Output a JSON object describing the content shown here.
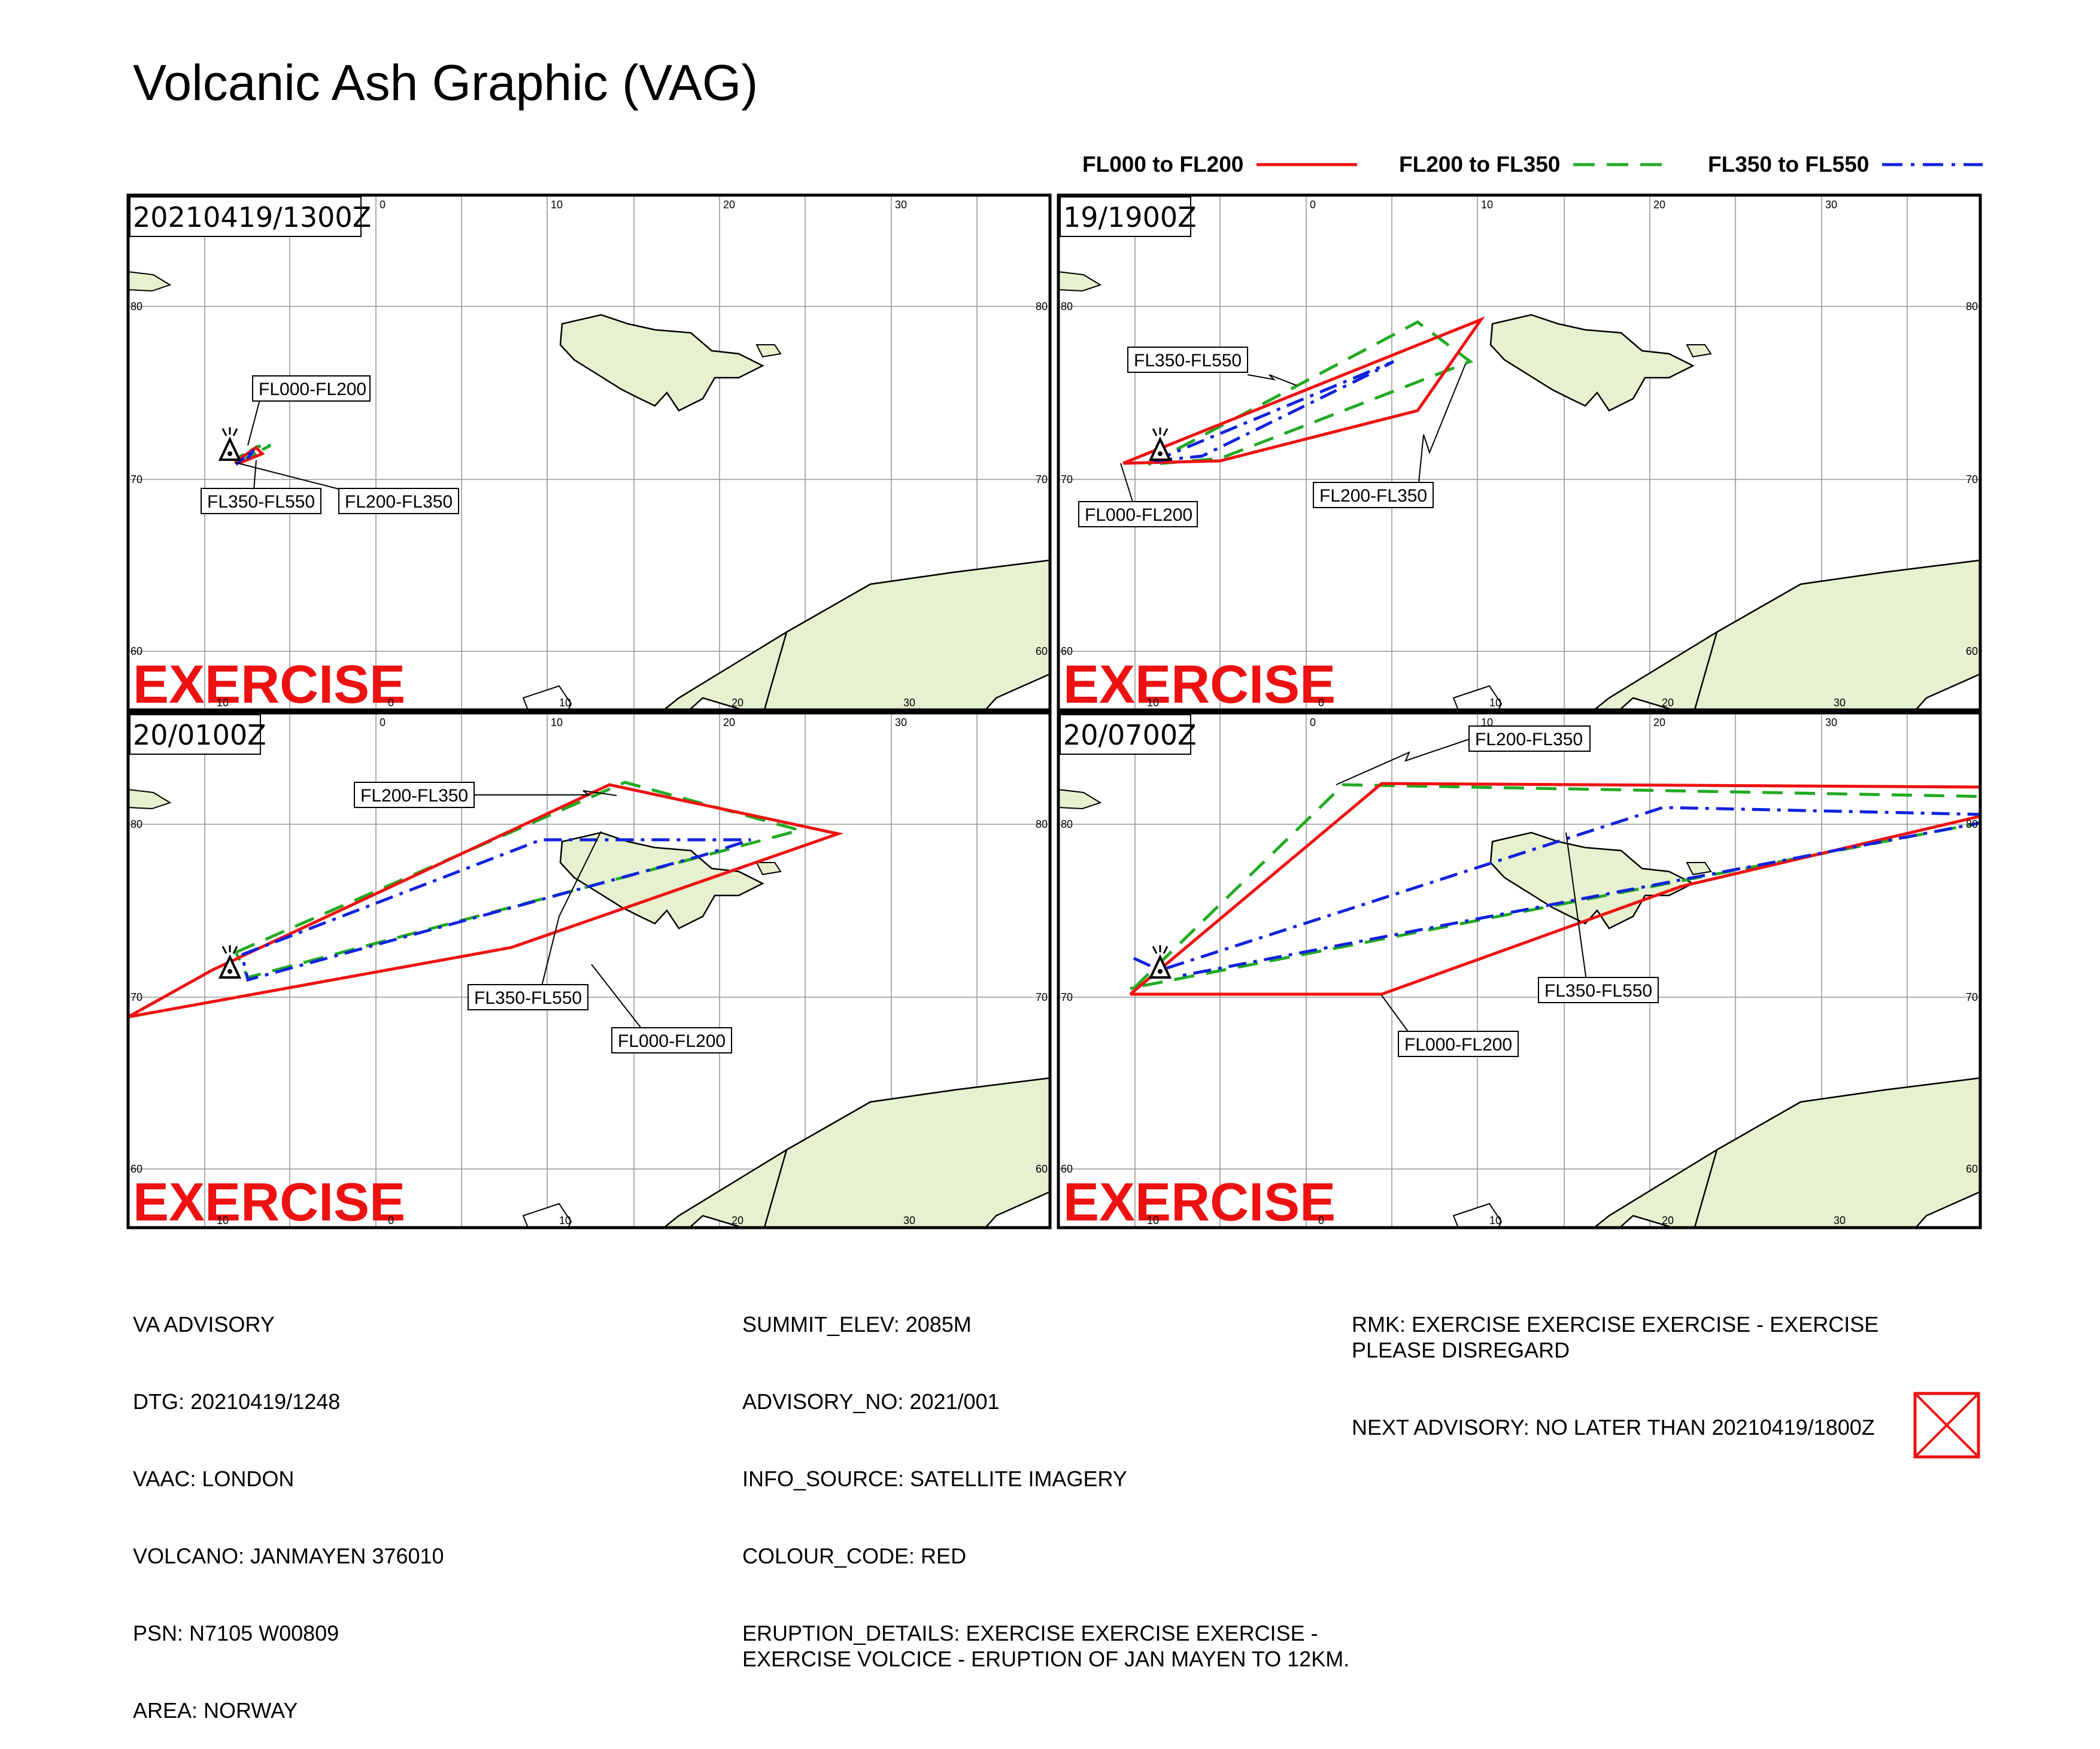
{
  "title": "Volcanic Ash Graphic (VAG)",
  "legend": [
    {
      "label": "FL000 to FL200",
      "color": "#ee1111",
      "style": "solid"
    },
    {
      "label": "FL200 to FL350",
      "color": "#22aa22",
      "style": "dashed"
    },
    {
      "label": "FL350 to FL550",
      "color": "#1122dd",
      "style": "dashdot"
    }
  ],
  "watermark": "EXERCISE",
  "colors": {
    "land": "#e6f1cf",
    "coast": "#000000",
    "grid": "#999999",
    "fl000": "#ee1111",
    "fl200": "#22aa22",
    "fl350": "#1122dd"
  },
  "axis_labels": {
    "lon": [
      "10",
      "0",
      "10",
      "20",
      "30"
    ],
    "lat": [
      "80",
      "70",
      "60"
    ]
  },
  "panels": [
    {
      "time": "20210419/1300Z",
      "labels": [
        "FL000-FL200",
        "FL350-FL550",
        "FL200-FL350"
      ]
    },
    {
      "time": "19/1900Z",
      "labels": [
        "FL350-FL550",
        "FL000-FL200",
        "FL200-FL350"
      ]
    },
    {
      "time": "20/0100Z",
      "labels": [
        "FL200-FL350",
        "FL350-FL550",
        "FL000-FL200"
      ]
    },
    {
      "time": "20/0700Z",
      "labels": [
        "FL200-FL350",
        "FL350-FL550",
        "FL000-FL200"
      ]
    }
  ],
  "advisory_left": [
    "VA ADVISORY",
    "DTG: 20210419/1248",
    "VAAC: LONDON",
    "VOLCANO: JANMAYEN 376010",
    "PSN: N7105 W00809",
    "AREA: NORWAY"
  ],
  "advisory_mid": [
    "SUMMIT_ELEV: 2085M",
    "ADVISORY_NO: 2021/001",
    "INFO_SOURCE: SATELLITE IMAGERY",
    "COLOUR_CODE: RED",
    "ERUPTION_DETAILS: EXERCISE EXERCISE EXERCISE - EXERCISE VOLCICE - ERUPTION OF JAN MAYEN TO 12KM."
  ],
  "advisory_right": [
    "RMK: EXERCISE EXERCISE EXERCISE - EXERCISE PLEASE DISREGARD",
    "NEXT ADVISORY: NO LATER THAN 20210419/1800Z"
  ]
}
